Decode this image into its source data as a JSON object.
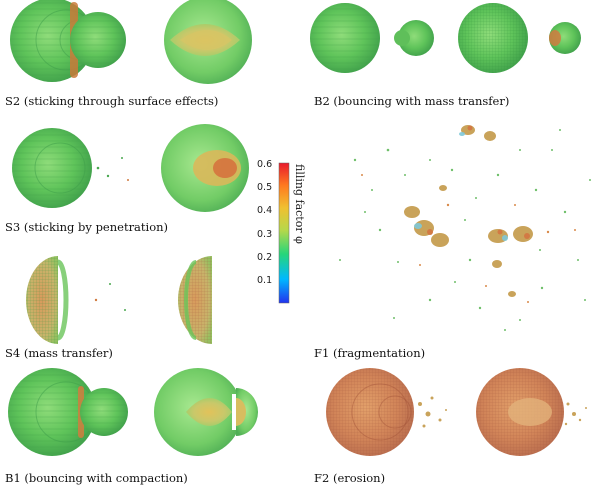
{
  "panels": [
    {
      "id": "S2",
      "label": "S2 (sticking through surface effects)"
    },
    {
      "id": "B2",
      "label": "B2 (bouncing with mass transfer)"
    },
    {
      "id": "S3",
      "label": "S3 (sticking by penetration)"
    },
    {
      "id": "F1",
      "label": "F1 (fragmentation)"
    },
    {
      "id": "S4",
      "label": "S4 (mass transfer)"
    },
    {
      "id": "B1",
      "label": "B1 (bouncing with compaction)"
    },
    {
      "id": "F2",
      "label": "F2 (erosion)"
    }
  ],
  "colorbar": {
    "title": "filling factor φ",
    "ticks": [
      "0.6",
      "0.5",
      "0.4",
      "0.3",
      "0.2",
      "0.1"
    ],
    "min": 0.0,
    "max": 0.6,
    "colors": [
      "#2233ee",
      "#00b8ff",
      "#27d67a",
      "#b6d84a",
      "#f0c030",
      "#ff7a20",
      "#e8192c"
    ]
  }
}
